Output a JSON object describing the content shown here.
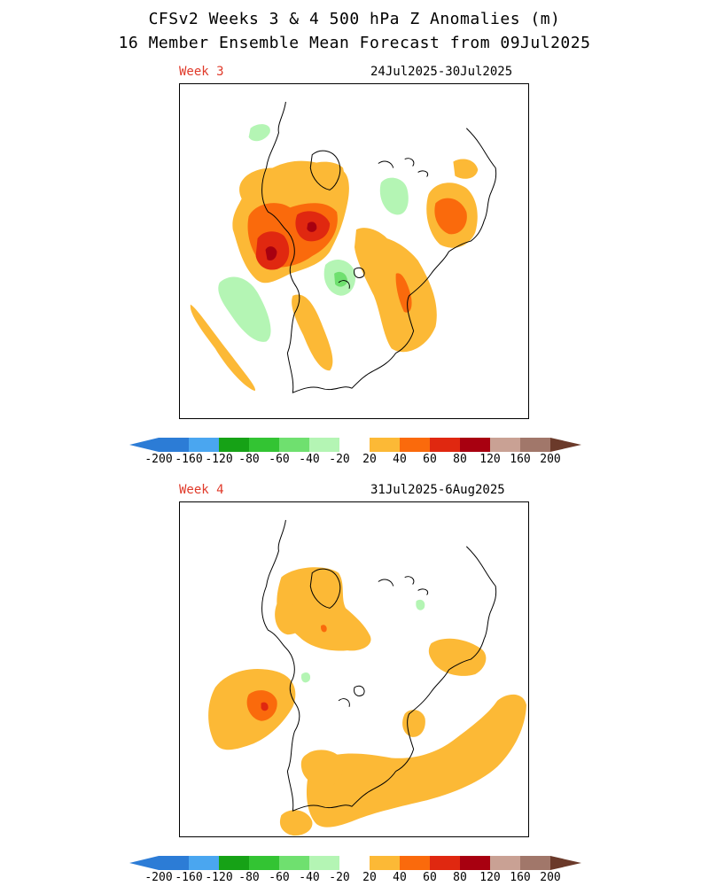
{
  "header": {
    "line1": "CFSv2 Weeks 3 & 4 500 hPa Z Anomalies (m)",
    "line2": "16 Member Ensemble Mean Forecast from 09Jul2025"
  },
  "panels": [
    {
      "label": "Week 3",
      "dates": "24Jul2025-30Jul2025"
    },
    {
      "label": "Week 4",
      "dates": "31Jul2025-6Aug2025"
    }
  ],
  "colorbar": {
    "labels": [
      "-200",
      "-160",
      "-120",
      "-80",
      "-60",
      "-40",
      "-20",
      "20",
      "40",
      "60",
      "80",
      "120",
      "160",
      "200"
    ],
    "colors": {
      "neg_200": "#2c7cd6",
      "neg_160": "#4aa6f0",
      "neg_120": "#9ed3f5",
      "neg_80": "#16a216",
      "neg_60": "#33c433",
      "neg_40": "#6fe06f",
      "neg_20": "#b4f5b4",
      "zero": "#ffffff",
      "pos_20": "#fcb936",
      "pos_40": "#fa6a0c",
      "pos_60": "#e02810",
      "pos_80": "#a80010",
      "pos_120": "#c9a194",
      "pos_160": "#a1776a",
      "pos_200": "#6b3a2a"
    }
  }
}
